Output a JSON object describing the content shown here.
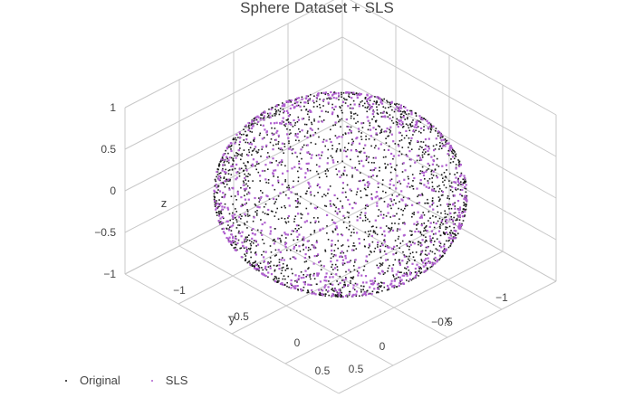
{
  "chart_data": {
    "type": "scatter3d",
    "title": "Sphere Dataset + SLS",
    "xlabel": "x",
    "ylabel": "y",
    "zlabel": "z",
    "xlim": [
      -1,
      1
    ],
    "ylim": [
      -1,
      1
    ],
    "zlim": [
      -1,
      1
    ],
    "x_ticks": [
      "−1",
      "−0.5",
      "0",
      "0.5"
    ],
    "y_ticks": [
      "−1",
      "−0.5",
      "0",
      "0.5"
    ],
    "z_ticks": [
      "−1",
      "−0.5",
      "0",
      "0.5",
      "1"
    ],
    "series": [
      {
        "name": "Original",
        "color": "#1a1a1a",
        "shape": "unit sphere surface",
        "approx_points": 2000
      },
      {
        "name": "SLS",
        "color": "#b060d0",
        "shape": "unit sphere surface",
        "approx_points": 1000
      }
    ],
    "legend_position": "bottom-left"
  }
}
